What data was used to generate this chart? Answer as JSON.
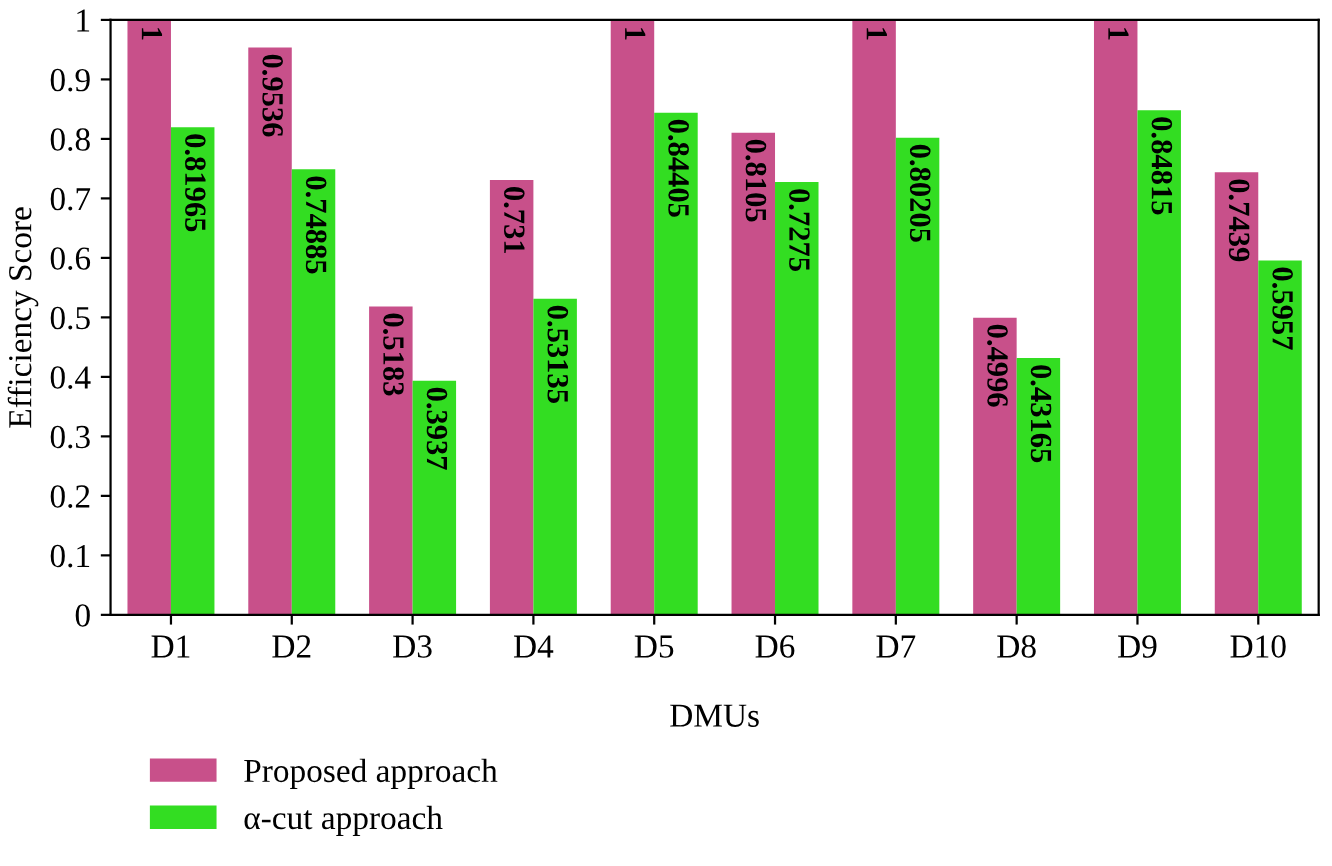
{
  "chart_data": {
    "type": "bar",
    "xlabel": "DMUs",
    "ylabel": "Efficiency Score",
    "categories": [
      "D1",
      "D2",
      "D3",
      "D4",
      "D5",
      "D6",
      "D7",
      "D8",
      "D9",
      "D10"
    ],
    "series": [
      {
        "name": "Proposed approach",
        "color": "#c8508a",
        "values": [
          1,
          0.9536,
          0.5183,
          0.731,
          1,
          0.8105,
          1,
          0.4996,
          1,
          0.7439
        ]
      },
      {
        "name": "α-cut approach",
        "color": "#33dd22",
        "values": [
          0.81965,
          0.74885,
          0.3937,
          0.53135,
          0.84405,
          0.7275,
          0.80205,
          0.43165,
          0.84815,
          0.5957
        ]
      }
    ],
    "ylim": [
      0,
      1
    ],
    "yticks": [
      0,
      0.1,
      0.2,
      0.3,
      0.4,
      0.5,
      0.6,
      0.7,
      0.8,
      0.9,
      1
    ],
    "data_labels": true,
    "legend": "bottom left",
    "grid": false
  }
}
